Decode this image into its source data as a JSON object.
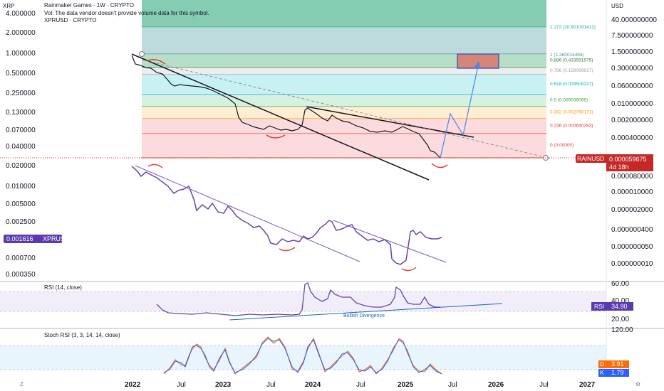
{
  "header": {
    "title": "Rainmaker Games · 1W · CRYPTO",
    "volume_note": "Vol: The data vendor doesn't provide volume data for this symbol.",
    "compare_symbol": "XPRUSD · CRYPTO"
  },
  "left_axis": {
    "unit": "XRP",
    "ticks": [
      "4.000000",
      "2.000000",
      "1.000000",
      "0.500000",
      "0.250000",
      "0.130000",
      "0.070000",
      "0.040000",
      "0.020000",
      "0.010000",
      "0.005000",
      "0.002500",
      "0.001300",
      "0.000700",
      "0.000350"
    ],
    "xpr_badge_value": "0.001616",
    "xpr_badge_label": "XPRUSD"
  },
  "right_axis": {
    "unit": "USD",
    "ticks": [
      "40.000000000",
      "7.500000000",
      "1.500000000",
      "0.300000000",
      "0.060000000",
      "0.010000000",
      "0.002000000",
      "0.000400000",
      "0.000080000",
      "0.000010000",
      "0.000002000",
      "0.000000400",
      "0.000000050",
      "0.000000010",
      "0.000000001"
    ],
    "price_label": "RAINUSD",
    "price_value": "0.000059675",
    "countdown": "4d 18h"
  },
  "fib_levels": [
    {
      "label": "1.272 (20.801091412)",
      "color": "#6fc3a4"
    },
    {
      "label": "1 (1.360014494)",
      "color": "#a7cfd1"
    },
    {
      "label": "0.886 (0.433591575)",
      "color": "#9fd4b4"
    },
    {
      "label": "0.786 (0.159069617)",
      "color": "#e4e7ea"
    },
    {
      "label": "0.618 (0.029509237)",
      "color": "#b4ecef"
    },
    {
      "label": "0.5 (0.009038066)",
      "color": "#c7ecd5"
    },
    {
      "label": "0.382 (0.002768171)",
      "color": "#fde6c4"
    },
    {
      "label": "0.236 (0.000640283)",
      "color": "#f9cfd2"
    },
    {
      "label": "0 (0.00000)",
      "color": "#f9cfd2"
    }
  ],
  "time_axis": {
    "labels": [
      "2022",
      "Jul",
      "2023",
      "Jul",
      "2024",
      "Jul",
      "2025",
      "Jul",
      "2026",
      "Jul",
      "2027"
    ]
  },
  "rsi": {
    "title": "RSI (14, close)",
    "ticks": [
      "60.00",
      "40.00",
      "20.00"
    ],
    "badge_label": "RSI",
    "badge_value": "34.90",
    "annotation": "Bullish Divergence"
  },
  "stoch": {
    "title": "Stoch RSI (3, 3, 14, 14, close)",
    "ticks": [
      "120.00"
    ],
    "d_label": "D",
    "d_value": "3.91",
    "k_label": "K",
    "k_value": "1.79"
  },
  "colors": {
    "price_line": "#131722",
    "xpr_line": "#6a42b0",
    "projection": "#4a86e8",
    "rsi_line": "#6a42b0",
    "k_line": "#2962ff",
    "d_line": "#ff6d00",
    "price_badge": "#c62828",
    "xpr_badge": "#5b3ab0",
    "rsi_badge": "#5b3ab0",
    "d_badge": "#ff6d00",
    "k_badge": "#2962ff"
  },
  "chart_data": [
    {
      "type": "line",
      "title": "Rainmaker Games · 1W · CRYPTO",
      "scale": "log",
      "ylabel": "USD",
      "x": [
        "2022-01",
        "2022-04",
        "2022-07",
        "2022-10",
        "2023-01",
        "2023-04",
        "2023-07",
        "2023-10",
        "2023-12",
        "2024-03",
        "2024-06",
        "2024-09",
        "2024-12",
        "2025-02",
        "2025-04",
        "2025-05"
      ],
      "series": [
        {
          "name": "RAINUSD",
          "values": [
            1.3,
            0.9,
            0.12,
            0.1,
            0.015,
            0.0015,
            0.0005,
            0.0006,
            0.009,
            0.0025,
            0.0006,
            0.0004,
            0.0009,
            0.0006,
            6e-05,
            5.9675e-05
          ]
        }
      ],
      "fibonacci": [
        1.272,
        1,
        0.886,
        0.786,
        0.618,
        0.5,
        0.382,
        0.236,
        0
      ]
    },
    {
      "type": "line",
      "title": "XPRUSD · CRYPTO",
      "scale": "log",
      "ylabel": "XRP",
      "x": [
        "2022-01",
        "2022-04",
        "2022-07",
        "2022-10",
        "2023-01",
        "2023-04",
        "2023-07",
        "2023-10",
        "2024-01",
        "2024-04",
        "2024-07",
        "2024-10",
        "2024-12",
        "2025-02",
        "2025-04",
        "2025-05"
      ],
      "series": [
        {
          "name": "XPRUSD",
          "values": [
            0.02,
            0.016,
            0.012,
            0.006,
            0.005,
            0.0035,
            0.0013,
            0.0012,
            0.0028,
            0.0025,
            0.0012,
            0.0013,
            0.0006,
            0.0022,
            0.0018,
            0.001616
          ]
        }
      ]
    },
    {
      "type": "line",
      "title": "RSI (14, close)",
      "ylim": [
        20,
        60
      ],
      "x": [
        "2022-03",
        "2022-07",
        "2023-01",
        "2023-07",
        "2023-11",
        "2023-12",
        "2024-04",
        "2024-08",
        "2024-12",
        "2025-02",
        "2025-05"
      ],
      "series": [
        {
          "name": "RSI",
          "values": [
            42,
            32,
            32,
            30,
            31,
            64,
            47,
            38,
            36,
            50,
            34.9
          ]
        }
      ]
    },
    {
      "type": "line",
      "title": "Stoch RSI (3, 3, 14, 14, close)",
      "x": [
        "2022-03",
        "2022-07",
        "2022-10",
        "2023-01",
        "2023-04",
        "2023-07",
        "2023-10",
        "2024-01",
        "2024-04",
        "2024-07",
        "2024-10",
        "2025-01",
        "2025-03",
        "2025-05"
      ],
      "series": [
        {
          "name": "K",
          "values": [
            5,
            90,
            80,
            10,
            60,
            5,
            95,
            85,
            10,
            60,
            5,
            90,
            10,
            1.79
          ]
        },
        {
          "name": "D",
          "values": [
            8,
            85,
            82,
            15,
            55,
            8,
            90,
            88,
            15,
            55,
            8,
            85,
            15,
            3.91
          ]
        }
      ]
    }
  ]
}
